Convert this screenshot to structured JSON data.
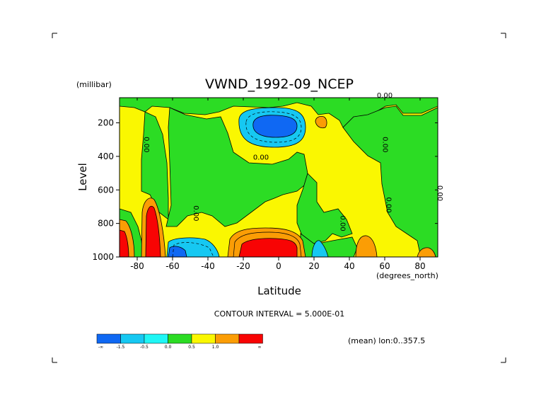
{
  "chart_data": {
    "type": "heatmap",
    "title": "VWND_1992-09_NCEP",
    "xlabel": "Latitude",
    "ylabel": "Level",
    "x_units": "(degrees_north)",
    "y_units": "(millibar)",
    "xlim": [
      -90,
      90
    ],
    "ylim": [
      1000,
      50
    ],
    "y_reversed": true,
    "x_ticks": [
      "-80",
      "-60",
      "-40",
      "-20",
      "0",
      "20",
      "40",
      "60",
      "80"
    ],
    "x_tick_values": [
      -80,
      -60,
      -40,
      -20,
      0,
      20,
      40,
      60,
      80
    ],
    "y_ticks": [
      "200",
      "400",
      "600",
      "800",
      "1000"
    ],
    "y_tick_values": [
      200,
      400,
      600,
      800,
      1000
    ],
    "contour_interval_text": "CONTOUR INTERVAL = 5.000E-01",
    "mean_note": "(mean) lon:0..357.5",
    "contour_labels": [
      {
        "text": "0.00",
        "lat": -76,
        "level": 330
      },
      {
        "text": "0.00",
        "lat": -48,
        "level": 740
      },
      {
        "text": "0.00",
        "lat": -10,
        "level": 420
      },
      {
        "text": "0.00",
        "lat": 35,
        "level": 800
      },
      {
        "text": "0.00",
        "lat": 59,
        "level": 330
      },
      {
        "text": "0.00",
        "lat": 61,
        "level": 690
      },
      {
        "text": "0.00",
        "lat": 90,
        "level": 620
      },
      {
        "text": "0.00",
        "lat": 60,
        "level": 50
      }
    ],
    "levels": [
      -1.5,
      -1.0,
      -0.5,
      0.0,
      0.5,
      1.0,
      1.5
    ],
    "legend": {
      "colors": [
        "#0f68f3",
        "#16c8f2",
        "#1ff6f5",
        "#2cdc24",
        "#faf701",
        "#fb9d05",
        "#f80404"
      ],
      "labels": [
        "-∞",
        "-1.5",
        "-0.5",
        "0.0",
        "0.5",
        "1.0",
        "∞"
      ]
    },
    "regions": [
      {
        "level_band": "-1.0 to -1.5",
        "color": "#0f68f3",
        "lat_range": [
          -12,
          5
        ],
        "level_range": [
          140,
          230
        ]
      },
      {
        "level_band": "-0.5 to -1.0",
        "color": "#16c8f2",
        "lat_range": [
          -22,
          12
        ],
        "level_range": [
          100,
          300
        ]
      },
      {
        "level_band": "1.5 to inf",
        "color": "#f80404",
        "lat_range": [
          -13,
          8
        ],
        "level_range": [
          900,
          1000
        ]
      },
      {
        "level_band": "1.5 to inf",
        "color": "#f80404",
        "lat_range": [
          -77,
          -70
        ],
        "level_range": [
          700,
          1000
        ]
      },
      {
        "level_band": "1.5 to inf",
        "color": "#f80404",
        "lat_range": [
          -90,
          -86
        ],
        "level_range": [
          830,
          1000
        ]
      },
      {
        "level_band": "-1.0 to -1.5",
        "color": "#0f68f3",
        "lat_range": [
          -62,
          -55
        ],
        "level_range": [
          950,
          1000
        ]
      },
      {
        "level_band": "-0.5 to -1.0",
        "color": "#16c8f2",
        "lat_range": [
          21,
          29
        ],
        "level_range": [
          870,
          1000
        ]
      },
      {
        "level_band": "0.5 to 1.0",
        "color": "#fb9d05",
        "lat_range": [
          44,
          55
        ],
        "level_range": [
          870,
          1000
        ]
      },
      {
        "level_band": "0.5 to 1.0",
        "color": "#fb9d05",
        "lat_range": [
          22,
          27
        ],
        "level_range": [
          60,
          110
        ]
      }
    ]
  },
  "colors": {
    "background": "#ffffff",
    "negative_dark": "#0f68f3",
    "negative_mid": "#16c8f2",
    "negative_light": "#1ff6f5",
    "near_zero": "#2cdc24",
    "positive_light": "#faf701",
    "positive_mid": "#fb9d05",
    "positive_high": "#f80404"
  }
}
